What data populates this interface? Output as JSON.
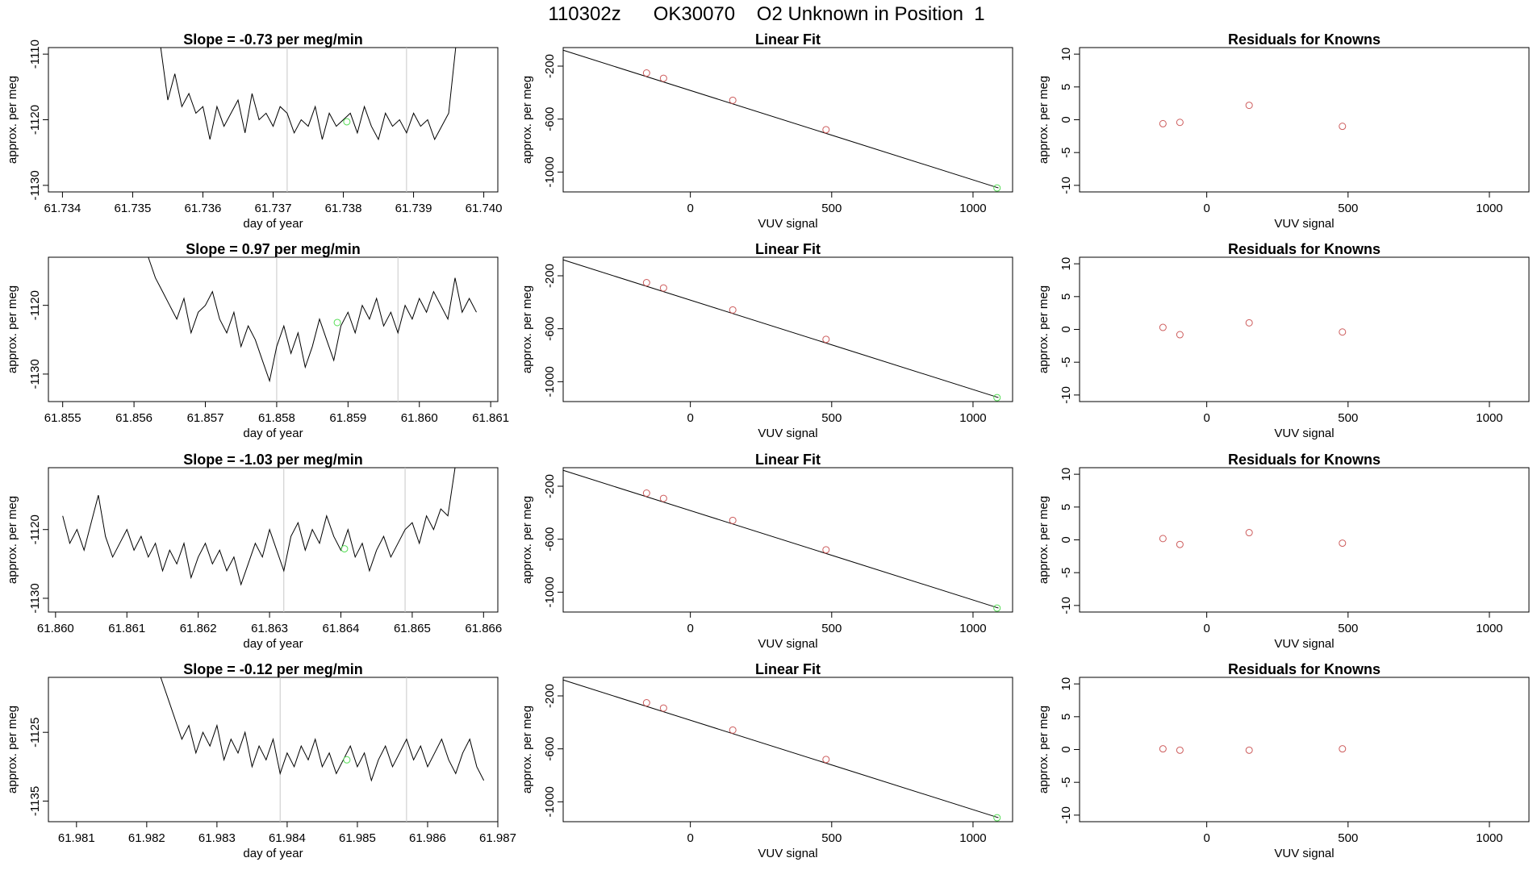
{
  "title": "110302z      OK30070    O2 Unknown in Position  1",
  "colors": {
    "line": "#000000",
    "known_point": "#cd5c5c",
    "unknown_point": "#55dd55",
    "vline": "#c8c8c8"
  },
  "chart_data": [
    {
      "type": "line",
      "panel": "timeseries",
      "title": "Slope =  -0.73  per meg/min",
      "xlabel": "day of year",
      "ylabel": "approx. per meg",
      "xlim": [
        61.7338,
        61.7402
      ],
      "ylim": [
        -1131,
        -1109
      ],
      "xticks": [
        61.734,
        61.735,
        61.736,
        61.737,
        61.738,
        61.739,
        61.74
      ],
      "xtick_labels": [
        "61.734",
        "61.735",
        "61.736",
        "61.737",
        "61.738",
        "61.739",
        "61.740"
      ],
      "yticks": [
        -1110,
        -1120,
        -1130
      ],
      "ytick_labels": [
        "-1110",
        "-1120",
        "-1130"
      ],
      "vlines": [
        61.7372,
        61.7389
      ],
      "series": [
        {
          "x": [
            61.7354,
            61.7355,
            61.7356,
            61.7357,
            61.7358,
            61.7359,
            61.736,
            61.7361,
            61.7362,
            61.7363,
            61.7364,
            61.7365,
            61.7366,
            61.7367,
            61.7368,
            61.7369,
            61.737,
            61.7371,
            61.7372,
            61.7373,
            61.7374,
            61.7375,
            61.7376,
            61.7377,
            61.7378,
            61.7379,
            61.738,
            61.7381,
            61.7382,
            61.7383,
            61.7384,
            61.7385,
            61.7386,
            61.7387,
            61.7388,
            61.7389,
            61.739,
            61.7391,
            61.7392,
            61.7393,
            61.7394,
            61.7395,
            61.7396
          ],
          "y": [
            -1109,
            -1117,
            -1113,
            -1118,
            -1116,
            -1119,
            -1118,
            -1123,
            -1118,
            -1121,
            -1119,
            -1117,
            -1122,
            -1116,
            -1120,
            -1119,
            -1121,
            -1118,
            -1119,
            -1122,
            -1120,
            -1121,
            -1118,
            -1123,
            -1119,
            -1121,
            -1120,
            -1119,
            -1122,
            -1118,
            -1121,
            -1123,
            -1119,
            -1121,
            -1120,
            -1122,
            -1119,
            -1121,
            -1120,
            -1123,
            -1121,
            -1119,
            -1109
          ]
        }
      ],
      "unknown_point": {
        "x": 61.73805,
        "y": -1120.3
      }
    },
    {
      "type": "line",
      "panel": "timeseries",
      "title": "Slope =  0.97  per meg/min",
      "xlabel": "day of year",
      "ylabel": "approx. per meg",
      "xlim": [
        61.8548,
        61.8611
      ],
      "ylim": [
        -1134,
        -1113
      ],
      "xticks": [
        61.855,
        61.856,
        61.857,
        61.858,
        61.859,
        61.86,
        61.861
      ],
      "xtick_labels": [
        "61.855",
        "61.856",
        "61.857",
        "61.858",
        "61.859",
        "61.860",
        "61.861"
      ],
      "yticks": [
        -1120,
        -1130
      ],
      "ytick_labels": [
        "-1120",
        "-1130"
      ],
      "vlines": [
        61.858,
        61.8597
      ],
      "series": [
        {
          "x": [
            61.8562,
            61.8563,
            61.8564,
            61.8565,
            61.8566,
            61.8567,
            61.8568,
            61.8569,
            61.857,
            61.8571,
            61.8572,
            61.8573,
            61.8574,
            61.8575,
            61.8576,
            61.8577,
            61.8578,
            61.8579,
            61.858,
            61.8581,
            61.8582,
            61.8583,
            61.8584,
            61.8585,
            61.8586,
            61.8587,
            61.8588,
            61.8589,
            61.859,
            61.8591,
            61.8592,
            61.8593,
            61.8594,
            61.8595,
            61.8596,
            61.8597,
            61.8598,
            61.8599,
            61.86,
            61.8601,
            61.8602,
            61.8603,
            61.8604,
            61.8605,
            61.8606,
            61.8607,
            61.8608
          ],
          "y": [
            -1113,
            -1116,
            -1118,
            -1120,
            -1122,
            -1119,
            -1124,
            -1121,
            -1120,
            -1118,
            -1122,
            -1124,
            -1121,
            -1126,
            -1123,
            -1125,
            -1128,
            -1131,
            -1126,
            -1123,
            -1127,
            -1124,
            -1129,
            -1126,
            -1122,
            -1125,
            -1128,
            -1123,
            -1121,
            -1124,
            -1120,
            -1122,
            -1119,
            -1123,
            -1121,
            -1124,
            -1120,
            -1122,
            -1119,
            -1121,
            -1118,
            -1120,
            -1122,
            -1116,
            -1121,
            -1119,
            -1121
          ]
        }
      ],
      "unknown_point": {
        "x": 61.85885,
        "y": -1122.5
      }
    },
    {
      "type": "line",
      "panel": "timeseries",
      "title": "Slope =  -1.03  per meg/min",
      "xlabel": "day of year",
      "ylabel": "approx. per meg",
      "xlim": [
        61.8599,
        61.8662
      ],
      "ylim": [
        -1132,
        -1111
      ],
      "xticks": [
        61.86,
        61.861,
        61.862,
        61.863,
        61.864,
        61.865,
        61.866
      ],
      "xtick_labels": [
        "61.860",
        "61.861",
        "61.862",
        "61.863",
        "61.864",
        "61.865",
        "61.866"
      ],
      "yticks": [
        -1120,
        -1130
      ],
      "ytick_labels": [
        "-1120",
        "-1130"
      ],
      "vlines": [
        61.8632,
        61.8649
      ],
      "series": [
        {
          "x": [
            61.8601,
            61.8602,
            61.8603,
            61.8604,
            61.8605,
            61.8606,
            61.8607,
            61.8608,
            61.8609,
            61.861,
            61.8611,
            61.8612,
            61.8613,
            61.8614,
            61.8615,
            61.8616,
            61.8617,
            61.8618,
            61.8619,
            61.862,
            61.8621,
            61.8622,
            61.8623,
            61.8624,
            61.8625,
            61.8626,
            61.8627,
            61.8628,
            61.8629,
            61.863,
            61.8631,
            61.8632,
            61.8633,
            61.8634,
            61.8635,
            61.8636,
            61.8637,
            61.8638,
            61.8639,
            61.864,
            61.8641,
            61.8642,
            61.8643,
            61.8644,
            61.8645,
            61.8646,
            61.8647,
            61.8648,
            61.8649,
            61.865,
            61.8651,
            61.8652,
            61.8653,
            61.8654,
            61.8655,
            61.8656
          ],
          "y": [
            -1118,
            -1122,
            -1120,
            -1123,
            -1119,
            -1115,
            -1121,
            -1124,
            -1122,
            -1120,
            -1123,
            -1121,
            -1124,
            -1122,
            -1126,
            -1123,
            -1125,
            -1122,
            -1127,
            -1124,
            -1122,
            -1125,
            -1123,
            -1126,
            -1124,
            -1128,
            -1125,
            -1122,
            -1124,
            -1120,
            -1123,
            -1126,
            -1121,
            -1119,
            -1123,
            -1120,
            -1122,
            -1118,
            -1121,
            -1123,
            -1120,
            -1124,
            -1122,
            -1126,
            -1123,
            -1121,
            -1124,
            -1122,
            -1120,
            -1119,
            -1122,
            -1118,
            -1120,
            -1117,
            -1118,
            -1111
          ]
        }
      ],
      "unknown_point": {
        "x": 61.86405,
        "y": -1122.8
      }
    },
    {
      "type": "line",
      "panel": "timeseries",
      "title": "Slope =  -0.12  per meg/min",
      "xlabel": "day of year",
      "ylabel": "approx. per meg",
      "xlim": [
        61.9806,
        61.987
      ],
      "ylim": [
        -1138,
        -1117
      ],
      "xticks": [
        61.981,
        61.982,
        61.983,
        61.984,
        61.985,
        61.986,
        61.987
      ],
      "xtick_labels": [
        "61.981",
        "61.982",
        "61.983",
        "61.984",
        "61.985",
        "61.986",
        "61.987"
      ],
      "yticks": [
        -1125,
        -1135
      ],
      "ytick_labels": [
        "-1125",
        "-1135"
      ],
      "vlines": [
        61.9839,
        61.9857
      ],
      "series": [
        {
          "x": [
            61.9822,
            61.9823,
            61.9824,
            61.9825,
            61.9826,
            61.9827,
            61.9828,
            61.9829,
            61.983,
            61.9831,
            61.9832,
            61.9833,
            61.9834,
            61.9835,
            61.9836,
            61.9837,
            61.9838,
            61.9839,
            61.984,
            61.9841,
            61.9842,
            61.9843,
            61.9844,
            61.9845,
            61.9846,
            61.9847,
            61.9848,
            61.9849,
            61.985,
            61.9851,
            61.9852,
            61.9853,
            61.9854,
            61.9855,
            61.9856,
            61.9857,
            61.9858,
            61.9859,
            61.986,
            61.9861,
            61.9862,
            61.9863,
            61.9864,
            61.9865,
            61.9866,
            61.9867,
            61.9868
          ],
          "y": [
            -1117,
            -1120,
            -1123,
            -1126,
            -1124,
            -1128,
            -1125,
            -1127,
            -1124,
            -1129,
            -1126,
            -1128,
            -1125,
            -1130,
            -1127,
            -1129,
            -1126,
            -1131,
            -1128,
            -1130,
            -1127,
            -1129,
            -1126,
            -1130,
            -1128,
            -1131,
            -1129,
            -1127,
            -1130,
            -1128,
            -1132,
            -1129,
            -1127,
            -1130,
            -1128,
            -1126,
            -1129,
            -1127,
            -1130,
            -1128,
            -1126,
            -1129,
            -1131,
            -1128,
            -1126,
            -1130,
            -1132
          ]
        }
      ],
      "unknown_point": {
        "x": 61.98485,
        "y": -1129
      }
    }
  ],
  "fit_charts": [
    {
      "type": "scatter",
      "panel": "fit",
      "title": "Linear Fit",
      "xlabel": "VUV signal",
      "ylabel": "approx. per meg",
      "xlim": [
        -450,
        1140
      ],
      "ylim": [
        -1150,
        -60
      ],
      "xticks": [
        0,
        500,
        1000
      ],
      "xtick_labels": [
        "0",
        "500",
        "1000"
      ],
      "yticks": [
        -200,
        -600,
        -1000
      ],
      "ytick_labels": [
        "-200",
        "-600",
        "-1000"
      ],
      "line": {
        "x": [
          -450,
          1090
        ],
        "y": [
          -80,
          -1120
        ]
      },
      "knowns": {
        "x": [
          -155,
          -95,
          150,
          480
        ],
        "y": [
          -252,
          -292,
          -458,
          -680
        ]
      },
      "unknown": {
        "x": 1085,
        "y": -1120
      }
    },
    {
      "type": "scatter",
      "panel": "fit",
      "title": "Linear Fit",
      "xlabel": "VUV signal",
      "ylabel": "approx. per meg",
      "xlim": [
        -450,
        1140
      ],
      "ylim": [
        -1150,
        -60
      ],
      "xticks": [
        0,
        500,
        1000
      ],
      "xtick_labels": [
        "0",
        "500",
        "1000"
      ],
      "yticks": [
        -200,
        -600,
        -1000
      ],
      "ytick_labels": [
        "-200",
        "-600",
        "-1000"
      ],
      "line": {
        "x": [
          -450,
          1090
        ],
        "y": [
          -80,
          -1120
        ]
      },
      "knowns": {
        "x": [
          -155,
          -95,
          150,
          480
        ],
        "y": [
          -252,
          -292,
          -458,
          -680
        ]
      },
      "unknown": {
        "x": 1085,
        "y": -1120
      }
    },
    {
      "type": "scatter",
      "panel": "fit",
      "title": "Linear Fit",
      "xlabel": "VUV signal",
      "ylabel": "approx. per meg",
      "xlim": [
        -450,
        1140
      ],
      "ylim": [
        -1150,
        -60
      ],
      "xticks": [
        0,
        500,
        1000
      ],
      "xtick_labels": [
        "0",
        "500",
        "1000"
      ],
      "yticks": [
        -200,
        -600,
        -1000
      ],
      "ytick_labels": [
        "-200",
        "-600",
        "-1000"
      ],
      "line": {
        "x": [
          -450,
          1090
        ],
        "y": [
          -80,
          -1120
        ]
      },
      "knowns": {
        "x": [
          -155,
          -95,
          150,
          480
        ],
        "y": [
          -252,
          -292,
          -458,
          -680
        ]
      },
      "unknown": {
        "x": 1085,
        "y": -1120
      }
    },
    {
      "type": "scatter",
      "panel": "fit",
      "title": "Linear Fit",
      "xlabel": "VUV signal",
      "ylabel": "approx. per meg",
      "xlim": [
        -450,
        1140
      ],
      "ylim": [
        -1150,
        -60
      ],
      "xticks": [
        0,
        500,
        1000
      ],
      "xtick_labels": [
        "0",
        "500",
        "1000"
      ],
      "yticks": [
        -200,
        -600,
        -1000
      ],
      "ytick_labels": [
        "-200",
        "-600",
        "-1000"
      ],
      "line": {
        "x": [
          -450,
          1090
        ],
        "y": [
          -80,
          -1120
        ]
      },
      "knowns": {
        "x": [
          -155,
          -95,
          150,
          480
        ],
        "y": [
          -252,
          -292,
          -458,
          -680
        ]
      },
      "unknown": {
        "x": 1085,
        "y": -1120
      }
    }
  ],
  "residual_charts": [
    {
      "type": "scatter",
      "panel": "residual",
      "title": "Residuals for Knowns",
      "xlabel": "VUV signal",
      "ylabel": "approx. per meg",
      "xlim": [
        -450,
        1140
      ],
      "ylim": [
        -11,
        11
      ],
      "xticks": [
        0,
        500,
        1000
      ],
      "xtick_labels": [
        "0",
        "500",
        "1000"
      ],
      "yticks": [
        10,
        5,
        0,
        -5,
        -10
      ],
      "ytick_labels": [
        "10",
        "5",
        "0",
        "-5",
        "-10"
      ],
      "points": {
        "x": [
          -155,
          -95,
          150,
          480
        ],
        "y": [
          -0.6,
          -0.4,
          2.2,
          -1.0
        ]
      }
    },
    {
      "type": "scatter",
      "panel": "residual",
      "title": "Residuals for Knowns",
      "xlabel": "VUV signal",
      "ylabel": "approx. per meg",
      "xlim": [
        -450,
        1140
      ],
      "ylim": [
        -11,
        11
      ],
      "xticks": [
        0,
        500,
        1000
      ],
      "xtick_labels": [
        "0",
        "500",
        "1000"
      ],
      "yticks": [
        10,
        5,
        0,
        -5,
        -10
      ],
      "ytick_labels": [
        "10",
        "5",
        "0",
        "-5",
        "-10"
      ],
      "points": {
        "x": [
          -155,
          -95,
          150,
          480
        ],
        "y": [
          0.3,
          -0.8,
          1.0,
          -0.4
        ]
      }
    },
    {
      "type": "scatter",
      "panel": "residual",
      "title": "Residuals for Knowns",
      "xlabel": "VUV signal",
      "ylabel": "approx. per meg",
      "xlim": [
        -450,
        1140
      ],
      "ylim": [
        -11,
        11
      ],
      "xticks": [
        0,
        500,
        1000
      ],
      "xtick_labels": [
        "0",
        "500",
        "1000"
      ],
      "yticks": [
        10,
        5,
        0,
        -5,
        -10
      ],
      "ytick_labels": [
        "10",
        "5",
        "0",
        "-5",
        "-10"
      ],
      "points": {
        "x": [
          -155,
          -95,
          150,
          480
        ],
        "y": [
          0.2,
          -0.7,
          1.1,
          -0.5
        ]
      }
    },
    {
      "type": "scatter",
      "panel": "residual",
      "title": "Residuals for Knowns",
      "xlabel": "VUV signal",
      "ylabel": "approx. per meg",
      "xlim": [
        -450,
        1140
      ],
      "ylim": [
        -11,
        11
      ],
      "xticks": [
        0,
        500,
        1000
      ],
      "xtick_labels": [
        "0",
        "500",
        "1000"
      ],
      "yticks": [
        10,
        5,
        0,
        -5,
        -10
      ],
      "ytick_labels": [
        "10",
        "5",
        "0",
        "-5",
        "-10"
      ],
      "points": {
        "x": [
          -155,
          -95,
          150,
          480
        ],
        "y": [
          0.1,
          -0.1,
          -0.1,
          0.1
        ]
      }
    }
  ]
}
